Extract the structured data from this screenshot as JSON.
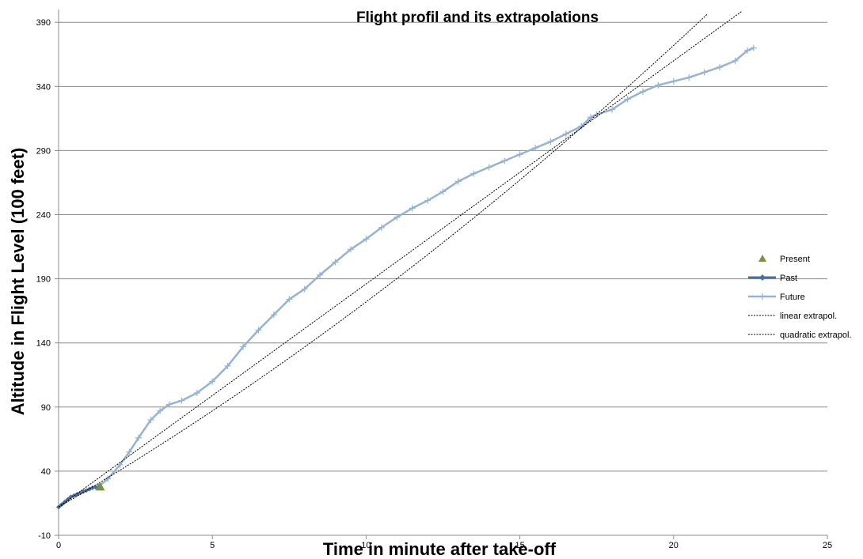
{
  "chart_data": {
    "type": "line",
    "title": "Flight profil and its extrapolations",
    "xlabel": "Time in minute after take-off",
    "ylabel": "Altitude in Flight Level (100 feet)",
    "xlim": [
      0,
      25
    ],
    "ylim": [
      -10,
      400
    ],
    "x_ticks": [
      0,
      5,
      10,
      15,
      20,
      25
    ],
    "y_ticks": [
      -10,
      40,
      90,
      140,
      190,
      240,
      290,
      340,
      390
    ],
    "grid": "horizontal major gridlines",
    "legend_position": "right",
    "colors": {
      "present": "#77933c",
      "past": "#4a6fa5",
      "future": "#95b3d7",
      "linear": "#000000",
      "quadratic": "#000000",
      "grid": "#8c8c8c",
      "axis": "#8c8c8c"
    },
    "series": [
      {
        "name": "Present",
        "marker": "triangle",
        "points": [
          [
            1.35,
            28
          ]
        ]
      },
      {
        "name": "Past",
        "marker": "diamond",
        "points": [
          [
            0.0,
            12
          ],
          [
            0.1,
            14
          ],
          [
            0.2,
            16
          ],
          [
            0.3,
            18
          ],
          [
            0.4,
            20
          ],
          [
            0.5,
            21
          ],
          [
            0.6,
            22
          ],
          [
            0.7,
            23
          ],
          [
            0.8,
            24
          ],
          [
            0.9,
            25
          ],
          [
            1.0,
            26
          ],
          [
            1.1,
            27
          ],
          [
            1.2,
            27.5
          ],
          [
            1.3,
            28
          ]
        ]
      },
      {
        "name": "Future",
        "marker": "plus",
        "points": [
          [
            1.3,
            28
          ],
          [
            1.6,
            34
          ],
          [
            2.0,
            45
          ],
          [
            2.3,
            55
          ],
          [
            2.6,
            66
          ],
          [
            3.0,
            80
          ],
          [
            3.3,
            87
          ],
          [
            3.6,
            92
          ],
          [
            4.0,
            95
          ],
          [
            4.5,
            101
          ],
          [
            5.0,
            110
          ],
          [
            5.5,
            122
          ],
          [
            6.0,
            137
          ],
          [
            6.5,
            150
          ],
          [
            7.0,
            162
          ],
          [
            7.5,
            174
          ],
          [
            8.0,
            182
          ],
          [
            8.5,
            193
          ],
          [
            9.0,
            203
          ],
          [
            9.5,
            213
          ],
          [
            10.0,
            221
          ],
          [
            10.5,
            230
          ],
          [
            11.0,
            238
          ],
          [
            11.5,
            245
          ],
          [
            12.0,
            251
          ],
          [
            12.5,
            258
          ],
          [
            13.0,
            266
          ],
          [
            13.5,
            272
          ],
          [
            14.0,
            277
          ],
          [
            14.5,
            282
          ],
          [
            15.0,
            287
          ],
          [
            15.5,
            292
          ],
          [
            16.0,
            297
          ],
          [
            16.5,
            303
          ],
          [
            17.0,
            309
          ],
          [
            17.3,
            316
          ],
          [
            17.5,
            318
          ],
          [
            18.0,
            322
          ],
          [
            18.5,
            330
          ],
          [
            19.0,
            336
          ],
          [
            19.5,
            341
          ],
          [
            20.0,
            344
          ],
          [
            20.5,
            347
          ],
          [
            21.0,
            351
          ],
          [
            21.5,
            355
          ],
          [
            22.0,
            360
          ],
          [
            22.4,
            368
          ],
          [
            22.6,
            370
          ]
        ]
      },
      {
        "name": "linear extrapol.",
        "style": "dotted",
        "function": "linear",
        "coefficients": {
          "a": 12,
          "b": 17.4
        },
        "domain": [
          0,
          22.6
        ]
      },
      {
        "name": "quadratic extrapol.",
        "style": "dotted",
        "function": "quadratic",
        "coefficients": {
          "a": 12,
          "b": 14,
          "c": 0.2
        },
        "domain": [
          0,
          22.4
        ]
      }
    ]
  }
}
